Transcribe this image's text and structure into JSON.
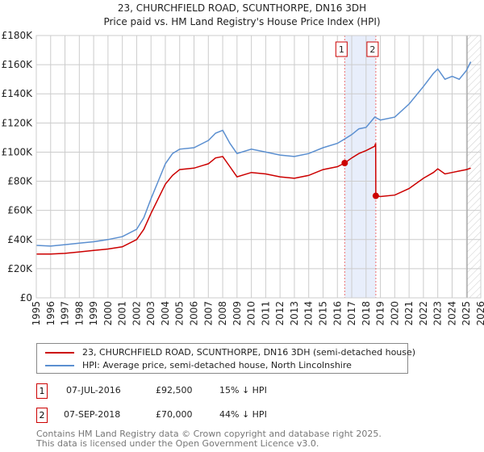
{
  "chart_data": {
    "type": "line",
    "title": "23, CHURCHFIELD ROAD, SCUNTHORPE, DN16 3DH",
    "subtitle": "Price paid vs. HM Land Registry's House Price Index (HPI)",
    "xlim": [
      1995,
      2026
    ],
    "ylim": [
      0,
      180000
    ],
    "x_ticks": [
      "1995",
      "1996",
      "1997",
      "1998",
      "1999",
      "2000",
      "2001",
      "2002",
      "2003",
      "2004",
      "2005",
      "2006",
      "2007",
      "2008",
      "2009",
      "2010",
      "2011",
      "2012",
      "2013",
      "2014",
      "2015",
      "2016",
      "2017",
      "2018",
      "2019",
      "2020",
      "2021",
      "2022",
      "2023",
      "2024",
      "2025",
      "2026"
    ],
    "y_ticks": [
      "£0",
      "£20K",
      "£40K",
      "£60K",
      "£80K",
      "£100K",
      "£120K",
      "£140K",
      "£160K",
      "£180K"
    ],
    "grid": true,
    "series": [
      {
        "name": "23, CHURCHFIELD ROAD, SCUNTHORPE, DN16 3DH (semi-detached house)",
        "color": "#cc0000",
        "x": [
          1995,
          1996,
          1997,
          1998,
          1999,
          2000,
          2001,
          2002,
          2002.5,
          2003,
          2003.5,
          2004,
          2004.5,
          2005,
          2006,
          2007,
          2007.5,
          2008,
          2008.5,
          2009,
          2010,
          2011,
          2012,
          2013,
          2014,
          2015,
          2016,
          2016.51,
          2017,
          2017.5,
          2018,
          2018.6,
          2018.67,
          2018.68,
          2019,
          2020,
          2021,
          2022,
          2022.7,
          2023,
          2023.5,
          2024,
          2024.5,
          2025,
          2025.3
        ],
        "y": [
          30000,
          30000,
          30500,
          31500,
          32500,
          33500,
          35000,
          40000,
          47000,
          58000,
          68000,
          78000,
          84000,
          88000,
          89000,
          92000,
          96000,
          97000,
          90000,
          83000,
          86000,
          85000,
          83000,
          82000,
          84000,
          88000,
          90000,
          92500,
          96000,
          99000,
          101000,
          104000,
          106000,
          70000,
          69500,
          70500,
          75000,
          82000,
          86000,
          88500,
          85000,
          86000,
          87000,
          88000,
          89000
        ]
      },
      {
        "name": "HPI: Average price, semi-detached house, North Lincolnshire",
        "color": "#5b8fd0",
        "x": [
          1995,
          1996,
          1997,
          1998,
          1999,
          2000,
          2001,
          2002,
          2002.5,
          2003,
          2003.5,
          2004,
          2004.5,
          2005,
          2006,
          2007,
          2007.5,
          2008,
          2008.5,
          2009,
          2010,
          2011,
          2012,
          2013,
          2014,
          2015,
          2016,
          2016.51,
          2017,
          2017.5,
          2018,
          2018.6,
          2019,
          2020,
          2021,
          2022,
          2022.7,
          2023,
          2023.5,
          2024,
          2024.5,
          2025,
          2025.3
        ],
        "y": [
          36000,
          35500,
          36500,
          37500,
          38500,
          40000,
          42000,
          47000,
          55000,
          68000,
          80000,
          92000,
          99000,
          102000,
          103000,
          108000,
          113000,
          115000,
          106000,
          99000,
          102000,
          100000,
          98000,
          97000,
          99000,
          103000,
          106000,
          109000,
          112000,
          116000,
          117000,
          124000,
          122000,
          124000,
          133000,
          145000,
          154000,
          157000,
          150000,
          152000,
          150000,
          156000,
          162000
        ]
      }
    ],
    "sales": [
      {
        "label": "1",
        "x": 2016.51,
        "price": 92500
      },
      {
        "label": "2",
        "x": 2018.68,
        "price": 70000
      }
    ]
  },
  "legend": [
    {
      "label": "23, CHURCHFIELD ROAD, SCUNTHORPE, DN16 3DH (semi-detached house)"
    },
    {
      "label": "HPI: Average price, semi-detached house, North Lincolnshire"
    }
  ],
  "transactions": [
    {
      "num": "1",
      "date": "07-JUL-2016",
      "price": "£92,500",
      "hpi": "15% ↓ HPI"
    },
    {
      "num": "2",
      "date": "07-SEP-2018",
      "price": "£70,000",
      "hpi": "44% ↓ HPI"
    }
  ],
  "footer": [
    "Contains HM Land Registry data © Crown copyright and database right 2025.",
    "This data is licensed under the Open Government Licence v3.0."
  ],
  "colors": {
    "red": "#cc0000",
    "blue": "#5b8fd0",
    "shade": "#e8eefb"
  }
}
